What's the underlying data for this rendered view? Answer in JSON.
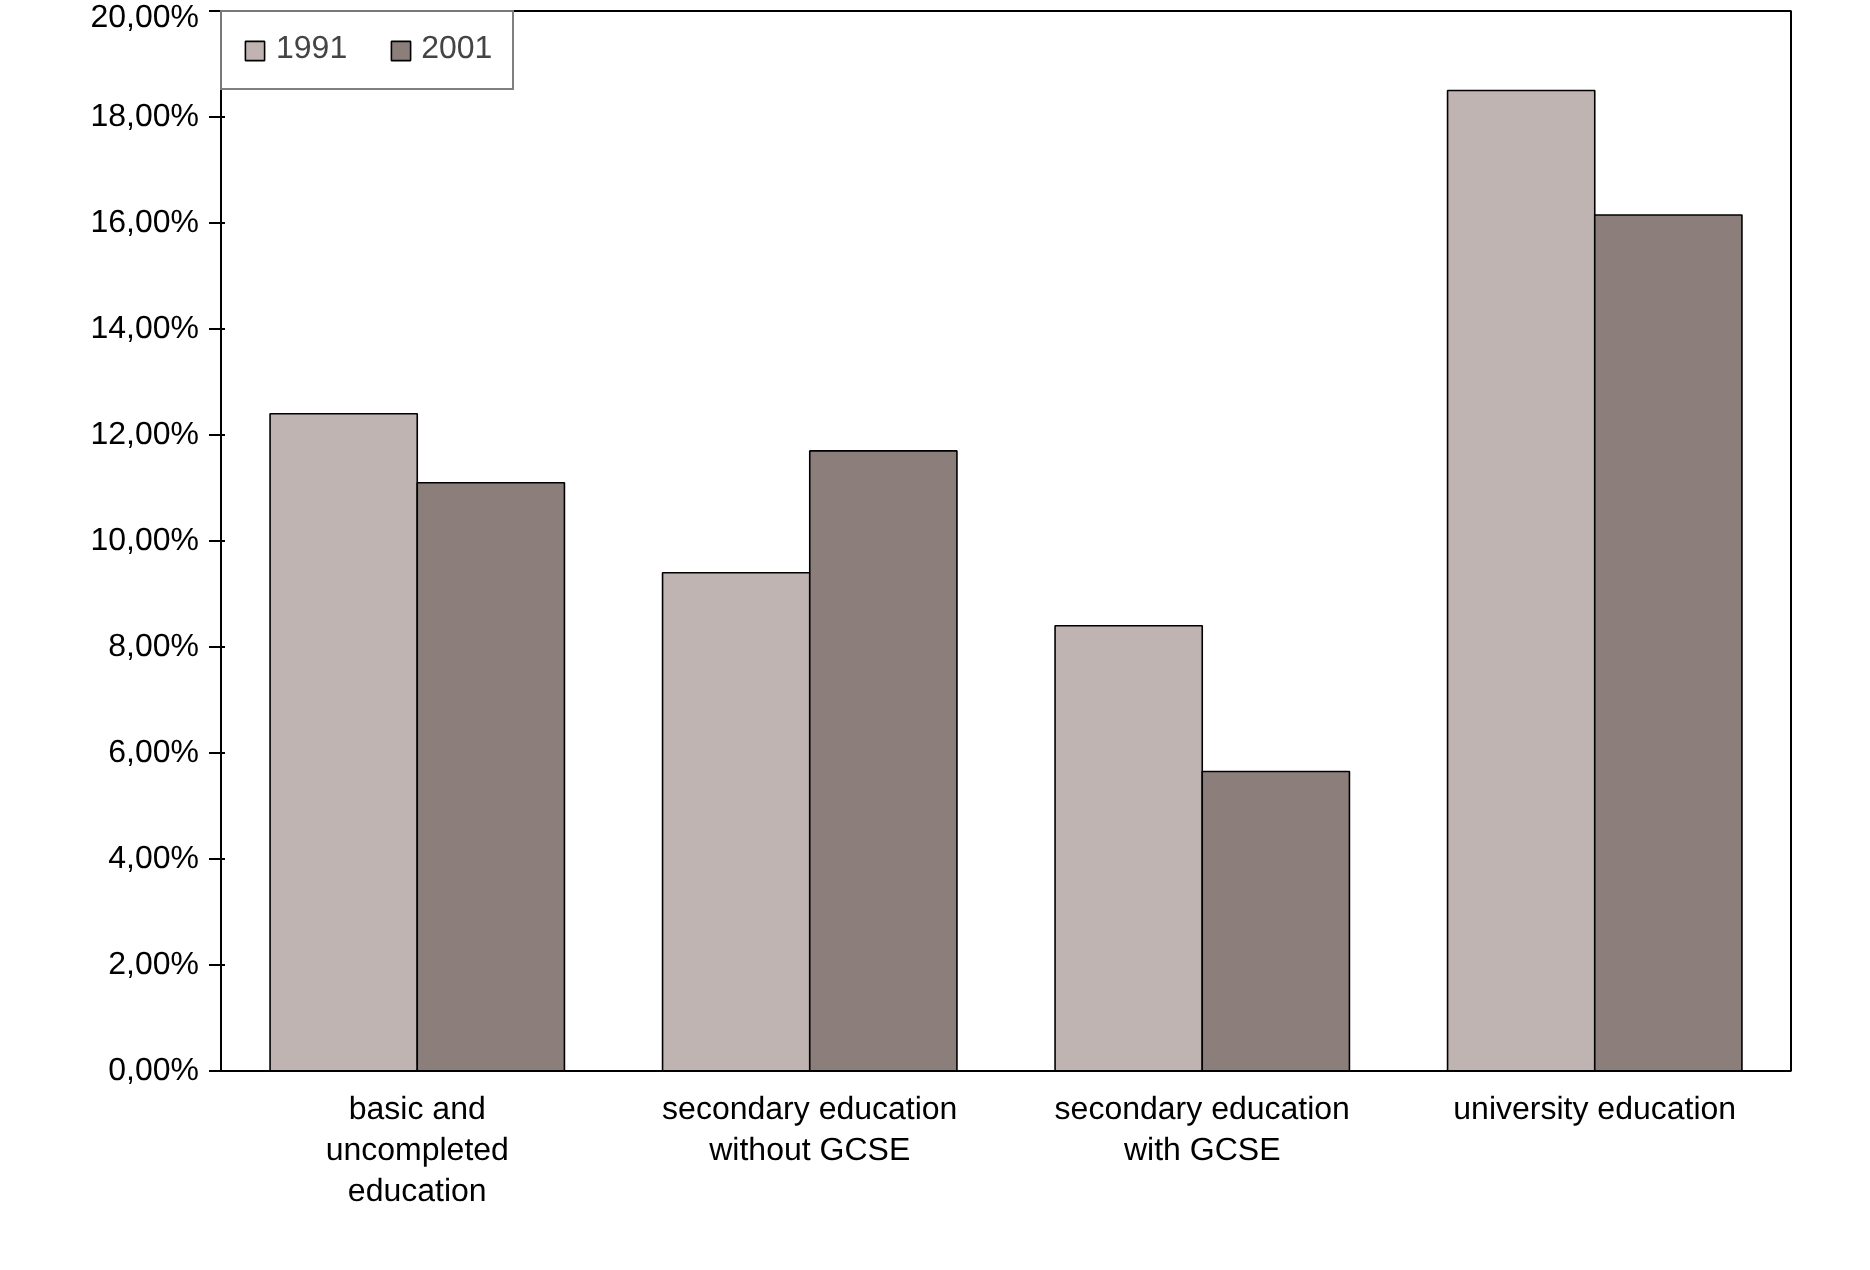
{
  "chart_data": {
    "type": "bar",
    "categories": [
      "basic and uncompleted education",
      "secondary education without GCSE",
      "secondary education with GCSE",
      "university education"
    ],
    "series": [
      {
        "name": "1991",
        "color": "#bfb4b1",
        "values": [
          12.4,
          9.4,
          8.4,
          18.5
        ]
      },
      {
        "name": "2001",
        "color": "#8c7f7b",
        "values": [
          11.1,
          11.7,
          5.65,
          16.15
        ]
      }
    ],
    "ylim": [
      0,
      20
    ],
    "yticks": [
      {
        "value": 0,
        "label": "0,00%"
      },
      {
        "value": 2,
        "label": "2,00%"
      },
      {
        "value": 4,
        "label": "4,00%"
      },
      {
        "value": 6,
        "label": "6,00%"
      },
      {
        "value": 8,
        "label": "8,00%"
      },
      {
        "value": 10,
        "label": "10,00%"
      },
      {
        "value": 12,
        "label": "12,00%"
      },
      {
        "value": 14,
        "label": "14,00%"
      },
      {
        "value": 16,
        "label": "16,00%"
      },
      {
        "value": 18,
        "label": "18,00%"
      },
      {
        "value": 20,
        "label": "20,00%"
      }
    ],
    "grid": false,
    "legend": "top left"
  }
}
